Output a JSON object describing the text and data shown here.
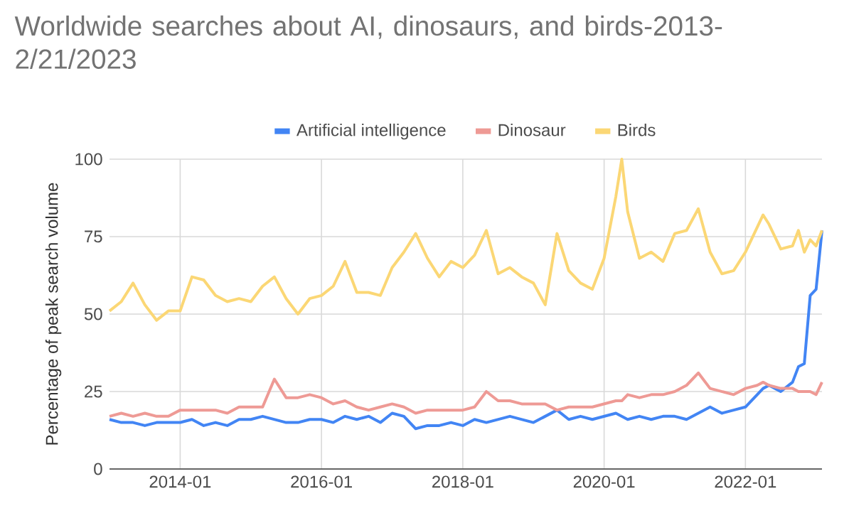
{
  "chart_data": {
    "type": "line",
    "title": "Worldwide searches about AI, dinosaurs, and birds-2013-2/21/2023",
    "ylabel": "Percentage of peak search volume",
    "x": [
      "2013-01",
      "2013-03",
      "2013-05",
      "2013-07",
      "2013-09",
      "2013-11",
      "2014-01",
      "2014-03",
      "2014-05",
      "2014-07",
      "2014-09",
      "2014-11",
      "2015-01",
      "2015-03",
      "2015-05",
      "2015-07",
      "2015-09",
      "2015-11",
      "2016-01",
      "2016-03",
      "2016-05",
      "2016-07",
      "2016-09",
      "2016-11",
      "2017-01",
      "2017-03",
      "2017-05",
      "2017-07",
      "2017-09",
      "2017-11",
      "2018-01",
      "2018-03",
      "2018-05",
      "2018-07",
      "2018-09",
      "2018-11",
      "2019-01",
      "2019-03",
      "2019-05",
      "2019-07",
      "2019-09",
      "2019-11",
      "2020-01",
      "2020-03",
      "2020-04",
      "2020-05",
      "2020-07",
      "2020-09",
      "2020-11",
      "2021-01",
      "2021-03",
      "2021-05",
      "2021-07",
      "2021-09",
      "2021-11",
      "2022-01",
      "2022-03",
      "2022-04",
      "2022-05",
      "2022-07",
      "2022-09",
      "2022-10",
      "2022-11",
      "2022-12",
      "2023-01",
      "2023-02"
    ],
    "series": [
      {
        "name": "Artificial intelligence",
        "color": "#4285f4",
        "values": [
          16,
          15,
          15,
          14,
          15,
          15,
          15,
          16,
          14,
          15,
          14,
          16,
          16,
          17,
          16,
          15,
          15,
          16,
          16,
          15,
          17,
          16,
          17,
          15,
          18,
          17,
          13,
          14,
          14,
          15,
          14,
          16,
          15,
          16,
          17,
          16,
          15,
          17,
          19,
          16,
          17,
          16,
          17,
          18,
          17,
          16,
          17,
          16,
          17,
          17,
          16,
          18,
          20,
          18,
          19,
          20,
          24,
          26,
          27,
          25,
          28,
          33,
          34,
          56,
          58,
          77
        ]
      },
      {
        "name": "Dinosaur",
        "color": "#ee9a95",
        "values": [
          17,
          18,
          17,
          18,
          17,
          17,
          19,
          19,
          19,
          19,
          18,
          20,
          20,
          20,
          29,
          23,
          23,
          24,
          23,
          21,
          22,
          20,
          19,
          20,
          21,
          20,
          18,
          19,
          19,
          19,
          19,
          20,
          25,
          22,
          22,
          21,
          21,
          21,
          19,
          20,
          20,
          20,
          21,
          22,
          22,
          24,
          23,
          24,
          24,
          25,
          27,
          31,
          26,
          25,
          24,
          26,
          27,
          28,
          27,
          26,
          26,
          25,
          25,
          25,
          24,
          28
        ]
      },
      {
        "name": "Birds",
        "color": "#fbd775",
        "values": [
          51,
          54,
          60,
          53,
          48,
          51,
          51,
          62,
          61,
          56,
          54,
          55,
          54,
          59,
          62,
          55,
          50,
          55,
          56,
          59,
          67,
          57,
          57,
          56,
          65,
          70,
          76,
          68,
          62,
          67,
          65,
          69,
          77,
          63,
          65,
          62,
          60,
          53,
          76,
          64,
          60,
          58,
          68,
          88,
          100,
          83,
          68,
          70,
          67,
          76,
          77,
          84,
          70,
          63,
          64,
          70,
          78,
          82,
          79,
          71,
          72,
          77,
          70,
          74,
          72,
          77
        ]
      }
    ],
    "xlim": [
      "2013-01",
      "2023-02"
    ],
    "xticks": [
      "2014-01",
      "2016-01",
      "2018-01",
      "2020-01",
      "2022-01"
    ],
    "ylim": [
      0,
      100
    ],
    "yticks": [
      0,
      25,
      50,
      75,
      100
    ],
    "grid": true,
    "legend": "top",
    "marker": "none",
    "line_style": "solid"
  }
}
